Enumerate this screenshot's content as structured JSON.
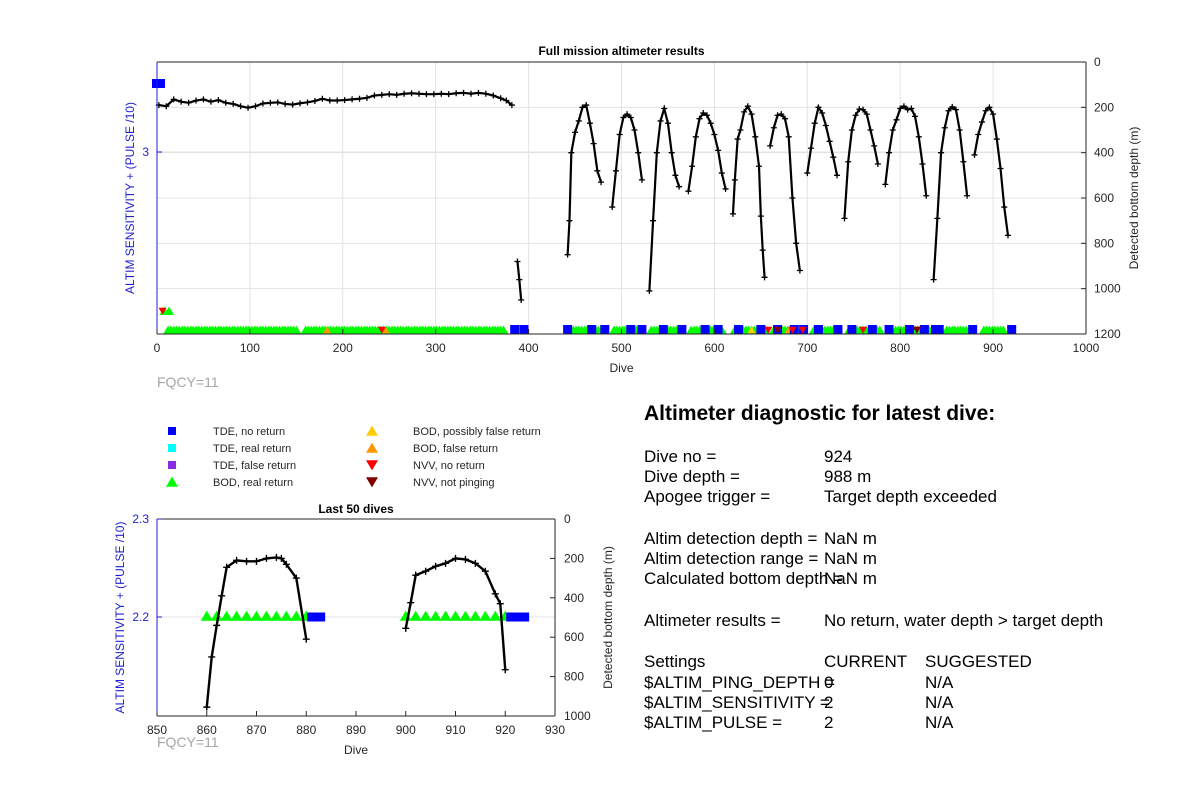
{
  "chart_data": [
    {
      "type": "scatter",
      "title": "Full mission altimeter results",
      "xlabel": "Dive",
      "ylabel_left": "ALTIM SENSITIVITY + (PULSE /10)",
      "ylabel_right": "Detected bottom depth (m)",
      "xlim": [
        0,
        1000
      ],
      "xticks": [
        0,
        100,
        200,
        300,
        400,
        500,
        600,
        700,
        800,
        900,
        1000
      ],
      "ylim_left_ticks": [
        3
      ],
      "ylim_right": [
        0,
        1200
      ],
      "yticks_right": [
        0,
        200,
        400,
        600,
        800,
        1000,
        1200
      ],
      "grid": true,
      "annotation": "FQCY=11",
      "depth_segments": [
        [
          [
            2,
            190
          ],
          [
            10,
            195
          ],
          [
            18,
            165
          ],
          [
            26,
            175
          ],
          [
            34,
            180
          ],
          [
            42,
            170
          ],
          [
            50,
            165
          ],
          [
            58,
            175
          ],
          [
            66,
            168
          ],
          [
            74,
            180
          ],
          [
            82,
            185
          ],
          [
            90,
            195
          ],
          [
            98,
            202
          ],
          [
            106,
            195
          ],
          [
            114,
            183
          ],
          [
            122,
            180
          ],
          [
            130,
            178
          ],
          [
            138,
            185
          ],
          [
            146,
            188
          ],
          [
            154,
            182
          ],
          [
            162,
            178
          ],
          [
            170,
            172
          ],
          [
            178,
            162
          ],
          [
            186,
            170
          ],
          [
            194,
            170
          ],
          [
            202,
            168
          ],
          [
            210,
            165
          ],
          [
            218,
            162
          ],
          [
            226,
            158
          ],
          [
            234,
            148
          ],
          [
            242,
            145
          ],
          [
            250,
            142
          ],
          [
            258,
            145
          ],
          [
            266,
            140
          ],
          [
            274,
            138
          ],
          [
            282,
            140
          ],
          [
            290,
            142
          ],
          [
            298,
            142
          ],
          [
            306,
            140
          ],
          [
            314,
            142
          ],
          [
            322,
            138
          ],
          [
            330,
            136
          ],
          [
            338,
            140
          ],
          [
            346,
            136
          ],
          [
            354,
            140
          ],
          [
            362,
            148
          ],
          [
            370,
            160
          ],
          [
            376,
            170
          ],
          [
            382,
            190
          ]
        ],
        [
          [
            388,
            880
          ],
          [
            390,
            960
          ],
          [
            392,
            1050
          ]
        ],
        [
          [
            442,
            850
          ],
          [
            444,
            700
          ],
          [
            446,
            400
          ],
          [
            450,
            310
          ],
          [
            454,
            260
          ],
          [
            458,
            200
          ],
          [
            462,
            190
          ],
          [
            466,
            270
          ],
          [
            470,
            360
          ],
          [
            474,
            480
          ],
          [
            478,
            530
          ]
        ],
        [
          [
            490,
            640
          ],
          [
            494,
            480
          ],
          [
            498,
            320
          ],
          [
            502,
            245
          ],
          [
            506,
            230
          ],
          [
            510,
            245
          ],
          [
            514,
            300
          ],
          [
            518,
            400
          ],
          [
            522,
            520
          ]
        ],
        [
          [
            530,
            1010
          ],
          [
            534,
            700
          ],
          [
            538,
            400
          ],
          [
            542,
            260
          ],
          [
            546,
            205
          ],
          [
            550,
            270
          ],
          [
            554,
            400
          ],
          [
            558,
            500
          ],
          [
            562,
            550
          ]
        ],
        [
          [
            572,
            570
          ],
          [
            576,
            460
          ],
          [
            580,
            330
          ],
          [
            584,
            250
          ],
          [
            588,
            225
          ],
          [
            592,
            235
          ],
          [
            596,
            270
          ],
          [
            600,
            320
          ],
          [
            604,
            390
          ],
          [
            608,
            490
          ],
          [
            612,
            560
          ]
        ],
        [
          [
            620,
            670
          ],
          [
            622,
            520
          ],
          [
            625,
            340
          ],
          [
            628,
            300
          ],
          [
            632,
            220
          ],
          [
            636,
            195
          ],
          [
            640,
            230
          ],
          [
            644,
            330
          ],
          [
            648,
            460
          ],
          [
            650,
            680
          ],
          [
            652,
            830
          ],
          [
            654,
            950
          ]
        ],
        [
          [
            660,
            370
          ],
          [
            664,
            290
          ],
          [
            668,
            235
          ],
          [
            672,
            230
          ],
          [
            676,
            250
          ],
          [
            680,
            330
          ],
          [
            684,
            600
          ],
          [
            688,
            800
          ],
          [
            692,
            920
          ]
        ],
        [
          [
            700,
            490
          ],
          [
            704,
            380
          ],
          [
            708,
            270
          ],
          [
            712,
            200
          ],
          [
            716,
            225
          ],
          [
            720,
            280
          ],
          [
            724,
            350
          ],
          [
            728,
            420
          ],
          [
            732,
            500
          ]
        ],
        [
          [
            740,
            690
          ],
          [
            744,
            440
          ],
          [
            748,
            300
          ],
          [
            752,
            235
          ],
          [
            756,
            208
          ],
          [
            760,
            210
          ],
          [
            764,
            230
          ],
          [
            768,
            300
          ],
          [
            772,
            370
          ],
          [
            776,
            450
          ]
        ],
        [
          [
            784,
            540
          ],
          [
            788,
            400
          ],
          [
            792,
            300
          ],
          [
            796,
            255
          ],
          [
            800,
            205
          ],
          [
            804,
            195
          ],
          [
            808,
            210
          ],
          [
            812,
            205
          ],
          [
            816,
            240
          ],
          [
            820,
            330
          ],
          [
            824,
            450
          ],
          [
            828,
            590
          ]
        ],
        [
          [
            836,
            960
          ],
          [
            840,
            690
          ],
          [
            844,
            400
          ],
          [
            848,
            290
          ],
          [
            852,
            215
          ],
          [
            856,
            198
          ],
          [
            860,
            210
          ],
          [
            864,
            300
          ],
          [
            868,
            440
          ],
          [
            872,
            590
          ]
        ],
        [
          [
            880,
            410
          ],
          [
            884,
            320
          ],
          [
            888,
            265
          ],
          [
            892,
            215
          ],
          [
            896,
            200
          ],
          [
            900,
            230
          ],
          [
            904,
            340
          ],
          [
            908,
            470
          ],
          [
            912,
            640
          ],
          [
            916,
            765
          ]
        ]
      ],
      "legend": [
        {
          "label": "TDE, no return",
          "marker": "square",
          "color": "#0000ff"
        },
        {
          "label": "TDE, real return",
          "marker": "square",
          "color": "#00ffff"
        },
        {
          "label": "TDE, false return",
          "marker": "square",
          "color": "#8a2be2"
        },
        {
          "label": "BOD, real return",
          "marker": "triangle-up",
          "color": "#00ff00"
        },
        {
          "label": "BOD, possibly false return",
          "marker": "triangle-up",
          "color": "#ffcc00"
        },
        {
          "label": "BOD, false return",
          "marker": "triangle-up",
          "color": "#ff9900"
        },
        {
          "label": "NVV, no return",
          "marker": "triangle-down",
          "color": "#ff0000"
        },
        {
          "label": "NVV, not pinging",
          "marker": "triangle-down",
          "color": "#800000"
        }
      ],
      "legend_placement": "below-left"
    },
    {
      "type": "scatter",
      "title": "Last 50 dives",
      "xlabel": "Dive",
      "ylabel_left": "ALTIM SENSITIVITY + (PULSE /10)",
      "ylabel_right": "Detected bottom depth (m)",
      "xlim": [
        850,
        930
      ],
      "xticks": [
        850,
        860,
        870,
        880,
        890,
        900,
        910,
        920,
        930
      ],
      "yticks_left": [
        2.2,
        2.3
      ],
      "ylim_right": [
        0,
        1000
      ],
      "yticks_right": [
        0,
        200,
        400,
        600,
        800,
        1000
      ],
      "annotation": "FQCY=11",
      "depth_segments": [
        [
          [
            860,
            955
          ],
          [
            861,
            700
          ],
          [
            862,
            540
          ],
          [
            863,
            390
          ],
          [
            864,
            245
          ],
          [
            866,
            210
          ],
          [
            868,
            215
          ],
          [
            870,
            215
          ],
          [
            872,
            200
          ],
          [
            874,
            195
          ],
          [
            875,
            200
          ],
          [
            876,
            230
          ],
          [
            878,
            300
          ],
          [
            880,
            610
          ]
        ],
        [
          [
            900,
            555
          ],
          [
            901,
            425
          ],
          [
            902,
            285
          ],
          [
            904,
            265
          ],
          [
            906,
            240
          ],
          [
            908,
            225
          ],
          [
            910,
            200
          ],
          [
            912,
            205
          ],
          [
            914,
            225
          ],
          [
            916,
            265
          ],
          [
            918,
            380
          ],
          [
            919,
            430
          ],
          [
            920,
            765
          ]
        ]
      ],
      "bod_real_return_dives": [
        860,
        862,
        864,
        866,
        868,
        870,
        872,
        874,
        876,
        878,
        880,
        900,
        902,
        904,
        906,
        908,
        910,
        912,
        914,
        916,
        918,
        920
      ],
      "tde_no_return_dives": [
        881,
        882,
        883,
        921,
        922,
        923,
        924
      ]
    }
  ],
  "diagnostic": {
    "title": "Altimeter diagnostic for latest dive:",
    "rows": [
      {
        "label": "Dive no =",
        "value": "924"
      },
      {
        "label": "Dive depth =",
        "value": "988 m"
      },
      {
        "label": "Apogee trigger =",
        "value": "Target depth exceeded"
      }
    ],
    "detection": [
      {
        "label": "Altim detection depth =",
        "value": "NaN m"
      },
      {
        "label": "Altim detection range =",
        "value": "NaN m"
      },
      {
        "label": "Calculated bottom depth =",
        "value": "NaN m"
      }
    ],
    "results": {
      "label": "Altimeter results =",
      "value": "No return, water depth > target depth"
    },
    "settings_header": {
      "label": "Settings",
      "current": "CURRENT",
      "suggested": "SUGGESTED"
    },
    "settings": [
      {
        "label": "$ALTIM_PING_DEPTH =",
        "current": "0",
        "suggested": "N/A"
      },
      {
        "label": "$ALTIM_SENSITIVITY =",
        "current": "2",
        "suggested": "N/A"
      },
      {
        "label": "$ALTIM_PULSE =",
        "current": "2",
        "suggested": "N/A"
      }
    ]
  }
}
